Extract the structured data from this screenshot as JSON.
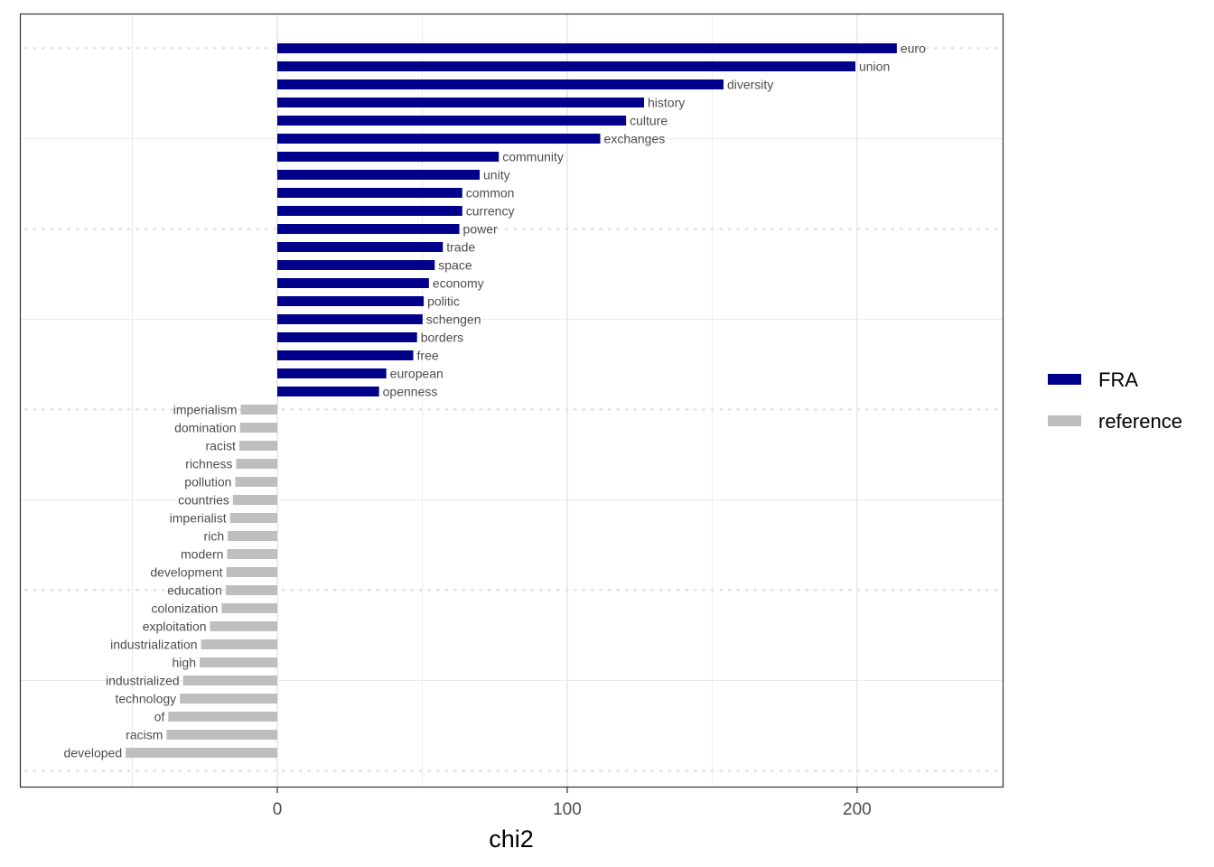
{
  "chart_data": {
    "type": "bar",
    "orientation": "horizontal",
    "xlabel": "chi2",
    "ylabel": "",
    "xlim": [
      -89,
      250
    ],
    "x_ticks": [
      0,
      100,
      200
    ],
    "grid": true,
    "legend_position": "right",
    "series": [
      {
        "name": "FRA",
        "color": "#00008b",
        "categories": [
          "euro",
          "union",
          "diversity",
          "history",
          "culture",
          "exchanges",
          "community",
          "unity",
          "common",
          "currency",
          "power",
          "trade",
          "space",
          "economy",
          "politic",
          "schengen",
          "borders",
          "free",
          "european",
          "openness"
        ],
        "values": [
          213.7,
          199.4,
          153.9,
          126.5,
          120.3,
          111.4,
          76.4,
          69.8,
          63.8,
          63.8,
          62.8,
          57.1,
          54.3,
          52.3,
          50.5,
          50.1,
          48.2,
          46.9,
          37.6,
          35.1
        ]
      },
      {
        "name": "reference",
        "color": "#bebebe",
        "categories": [
          "imperialism",
          "domination",
          "racist",
          "richness",
          "pollution",
          "countries",
          "imperialist",
          "rich",
          "modern",
          "development",
          "education",
          "colonization",
          "exploitation",
          "industrialization",
          "high",
          "industrialized",
          "technology",
          "of",
          "racism",
          "developed"
        ],
        "values": [
          -12.6,
          -12.9,
          -13.1,
          -14.2,
          -14.5,
          -15.3,
          -16.3,
          -17.1,
          -17.3,
          -17.6,
          -17.8,
          -19.2,
          -23.2,
          -26.3,
          -26.8,
          -32.5,
          -33.6,
          -37.6,
          -38.2,
          -52.3
        ]
      }
    ]
  }
}
